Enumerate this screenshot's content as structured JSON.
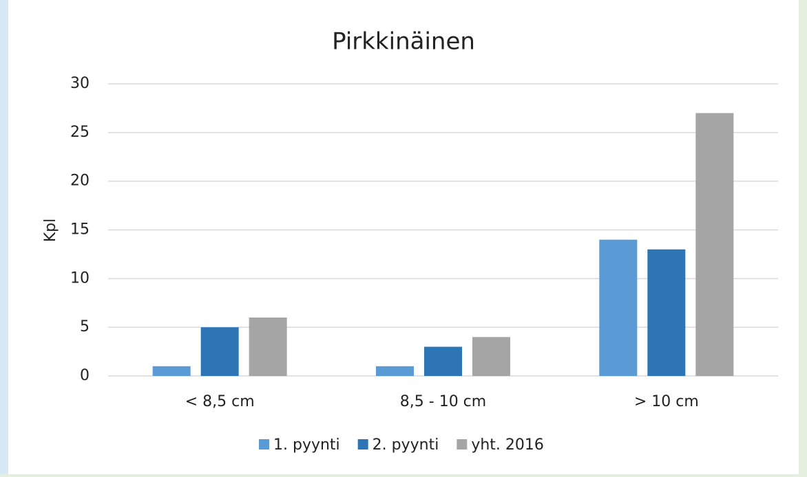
{
  "chart_data": {
    "type": "bar",
    "title": "Pirkkinäinen",
    "y_label": "Kpl",
    "categories": [
      "< 8,5 cm",
      "8,5 - 10 cm",
      "> 10 cm"
    ],
    "series": [
      {
        "name": "1. pyynti",
        "color": "#5b9bd5",
        "values": [
          1,
          1,
          14
        ]
      },
      {
        "name": "2. pyynti",
        "color": "#2e75b6",
        "values": [
          5,
          3,
          13
        ]
      },
      {
        "name": "yht. 2016",
        "color": "#a5a5a5",
        "values": [
          6,
          4,
          27
        ]
      }
    ],
    "ylim": [
      0,
      30
    ],
    "yticks": [
      0,
      5,
      10,
      15,
      20,
      25,
      30
    ],
    "grid": true,
    "legend": "bottom"
  }
}
